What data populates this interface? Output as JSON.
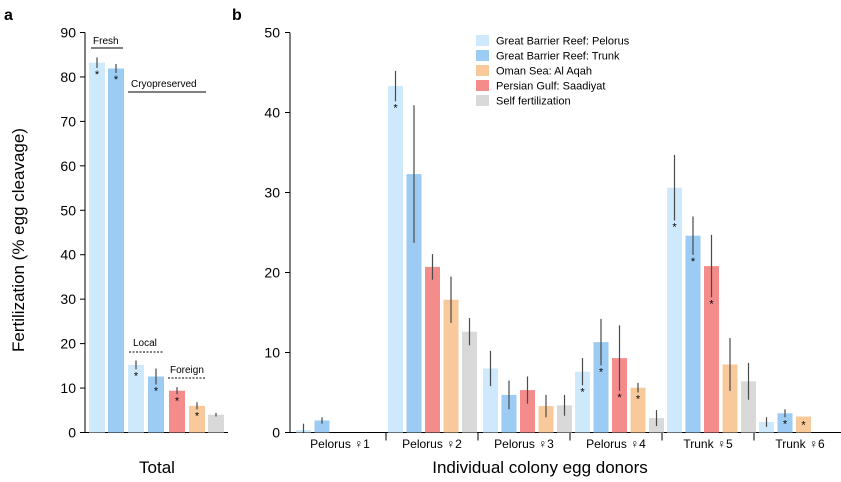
{
  "colors": {
    "pelorus": "#cde9fb",
    "trunk": "#9ccbf3",
    "alaqah": "#f7c99b",
    "saadiyat": "#f48c8c",
    "self": "#d9d9d9"
  },
  "chart_data": [
    {
      "panel": "a",
      "type": "bar",
      "xlabel": "Total",
      "ylabel": "Fertilization (% egg cleavage)",
      "ylim": [
        0,
        90
      ],
      "yticks": [
        "0",
        "10",
        "20",
        "30",
        "40",
        "50",
        "60",
        "70",
        "80",
        "90"
      ],
      "annotations": {
        "fresh": "Fresh",
        "cryopreserved": "Cryopreserved",
        "local": "Local",
        "foreign": "Foreign"
      },
      "bars": [
        {
          "series": "pelorus",
          "value": 83.2,
          "err": 1.2,
          "star": true
        },
        {
          "series": "trunk",
          "value": 81.9,
          "err": 1.0,
          "star": true
        },
        {
          "series": "pelorus",
          "value": 15.2,
          "err": 1.0,
          "star": true
        },
        {
          "series": "trunk",
          "value": 12.6,
          "err": 1.8,
          "star": true
        },
        {
          "series": "saadiyat",
          "value": 9.4,
          "err": 0.8,
          "star": true
        },
        {
          "series": "alaqah",
          "value": 6.0,
          "err": 0.8,
          "star": true
        },
        {
          "series": "self",
          "value": 4.0,
          "err": 0.4,
          "star": false
        }
      ]
    },
    {
      "panel": "b",
      "type": "bar",
      "xlabel": "Individual colony egg donors",
      "ylim": [
        0,
        50
      ],
      "yticks": [
        "0",
        "10",
        "20",
        "30",
        "40",
        "50"
      ],
      "categories": [
        "Pelorus ♀1",
        "Pelorus ♀2",
        "Pelorus ♀3",
        "Pelorus ♀4",
        "Trunk ♀5",
        "Trunk ♀6"
      ],
      "legend": [
        {
          "key": "pelorus",
          "label": "Great Barrier Reef: Pelorus"
        },
        {
          "key": "trunk",
          "label": "Great Barrier Reef: Trunk"
        },
        {
          "key": "alaqah",
          "label": "Oman Sea: Al Aqah"
        },
        {
          "key": "saadiyat",
          "label": "Persian Gulf: Saadiyat"
        },
        {
          "key": "self",
          "label": "Self fertilization"
        }
      ],
      "legend_position": "top-center",
      "groups": [
        [
          {
            "series": "pelorus",
            "value": 0.3,
            "err": 0.8,
            "star": false
          },
          {
            "series": "trunk",
            "value": 1.5,
            "err": 0.4,
            "star": false
          }
        ],
        [
          {
            "series": "pelorus",
            "value": 43.3,
            "err": 1.9,
            "star": true
          },
          {
            "series": "trunk",
            "value": 32.3,
            "err": 8.6,
            "star": false
          },
          {
            "series": "saadiyat",
            "value": 20.7,
            "err": 1.6,
            "star": false
          },
          {
            "series": "alaqah",
            "value": 16.6,
            "err": 2.9,
            "star": false
          },
          {
            "series": "self",
            "value": 12.6,
            "err": 1.7,
            "star": false
          }
        ],
        [
          {
            "series": "pelorus",
            "value": 8.0,
            "err": 2.2,
            "star": false
          },
          {
            "series": "trunk",
            "value": 4.7,
            "err": 1.8,
            "star": false
          },
          {
            "series": "saadiyat",
            "value": 5.3,
            "err": 1.7,
            "star": false
          },
          {
            "series": "alaqah",
            "value": 3.3,
            "err": 1.4,
            "star": false
          },
          {
            "series": "self",
            "value": 3.4,
            "err": 1.3,
            "star": false
          }
        ],
        [
          {
            "series": "pelorus",
            "value": 7.6,
            "err": 1.7,
            "star": true
          },
          {
            "series": "trunk",
            "value": 11.3,
            "err": 2.9,
            "star": true
          },
          {
            "series": "saadiyat",
            "value": 9.3,
            "err": 4.1,
            "star": true
          },
          {
            "series": "alaqah",
            "value": 5.6,
            "err": 0.6,
            "star": true
          },
          {
            "series": "self",
            "value": 1.8,
            "err": 1.0,
            "star": false
          }
        ],
        [
          {
            "series": "pelorus",
            "value": 30.6,
            "err": 4.1,
            "star": true
          },
          {
            "series": "trunk",
            "value": 24.6,
            "err": 2.4,
            "star": true
          },
          {
            "series": "saadiyat",
            "value": 20.8,
            "err": 3.9,
            "star": true
          },
          {
            "series": "alaqah",
            "value": 8.5,
            "err": 3.3,
            "star": false
          },
          {
            "series": "self",
            "value": 6.4,
            "err": 2.3,
            "star": false
          }
        ],
        [
          {
            "series": "pelorus",
            "value": 1.3,
            "err": 0.6,
            "star": false
          },
          {
            "series": "trunk",
            "value": 2.4,
            "err": 0.5,
            "star": true
          },
          {
            "series": "alaqah",
            "value": 2.0,
            "err": 0.0,
            "star": true
          }
        ]
      ]
    }
  ]
}
